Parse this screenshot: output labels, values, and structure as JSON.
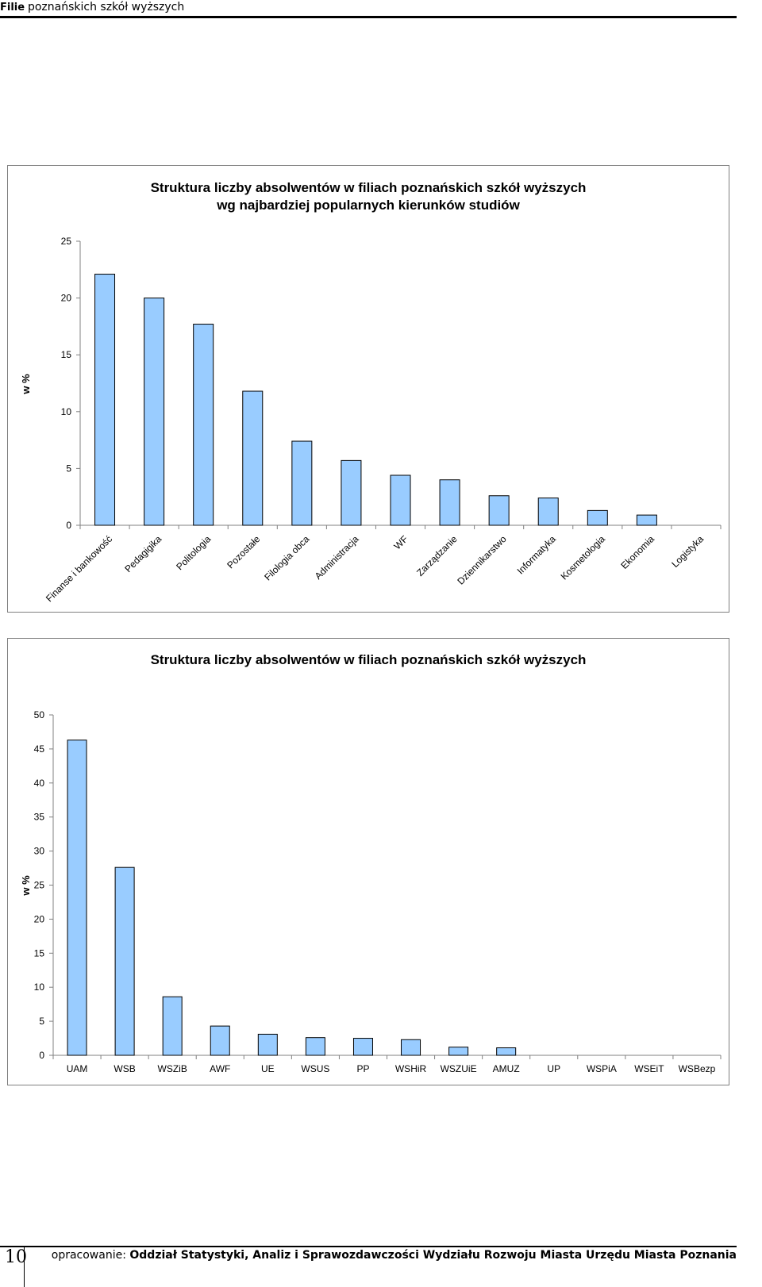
{
  "header": {
    "bold": "Filie",
    "rest": "poznańskich szkół wyższych"
  },
  "chart_data": [
    {
      "type": "bar",
      "title": [
        "Struktura liczby absolwentów w filiach poznańskich szkół wyższych",
        "wg najbardziej popularnych kierunków studiów"
      ],
      "ylabel": "w %",
      "ylim": [
        0,
        25
      ],
      "yticks": [
        0,
        5,
        10,
        15,
        20,
        25
      ],
      "categories": [
        "Finanse i bankowość",
        "Pedagigika",
        "Politologia",
        "Pozostałe",
        "Filologia obca",
        "Administracja",
        "WF",
        "Zarządzanie",
        "Dziennikarstwo",
        "Informatyka",
        "Kosmetologia",
        "Ekonomia",
        "Logistyka"
      ],
      "values": [
        22.1,
        20.0,
        17.7,
        11.8,
        7.4,
        5.7,
        4.4,
        4.0,
        2.6,
        2.4,
        1.3,
        0.9,
        0
      ],
      "bar_color": "#99ccff",
      "grid": false
    },
    {
      "type": "bar",
      "title": [
        "Struktura liczby absolwentów w filiach poznańskich szkół wyższych"
      ],
      "ylabel": "w %",
      "ylim": [
        0,
        50
      ],
      "yticks": [
        0,
        5,
        10,
        15,
        20,
        25,
        30,
        35,
        40,
        45,
        50
      ],
      "categories": [
        "UAM",
        "WSB",
        "WSZiB",
        "AWF",
        "UE",
        "WSUS",
        "PP",
        "WSHiR",
        "WSZUiE",
        "AMUZ",
        "UP",
        "WSPiA",
        "WSEiT",
        "WSBezp"
      ],
      "values": [
        46.3,
        27.6,
        8.6,
        4.3,
        3.1,
        2.6,
        2.5,
        2.3,
        1.2,
        1.1,
        0,
        0,
        0,
        0
      ],
      "bar_color": "#99ccff",
      "grid": false
    }
  ],
  "footer": {
    "page_number": "10",
    "credit_prefix": "opracowanie: ",
    "credit_bold": "Oddział Statystyki, Analiz i Sprawozdawczości Wydziału Rozwoju Miasta Urzędu Miasta Poznania"
  }
}
